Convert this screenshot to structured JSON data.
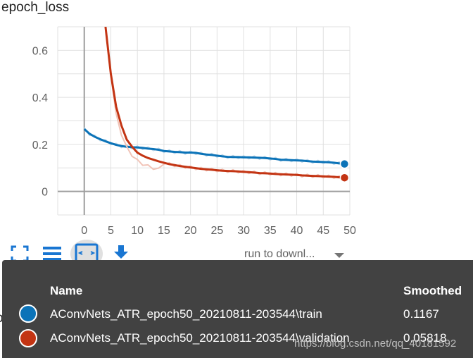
{
  "header": {
    "title": "epoch_loss"
  },
  "chart_data": {
    "type": "line",
    "title": "epoch_loss",
    "xlabel": "",
    "ylabel": "",
    "xlim": [
      -5,
      50
    ],
    "ylim": [
      -0.1,
      0.7
    ],
    "x_ticks": [
      "0",
      "5",
      "10",
      "15",
      "20",
      "25",
      "30",
      "35",
      "40",
      "45",
      "50"
    ],
    "y_ticks": [
      "0",
      "0.2",
      "0.4",
      "0.6"
    ],
    "grid": true,
    "series": [
      {
        "name": "AConvNets_ATR_epoch50_20210811-203544\\train",
        "color": "#0b73b8",
        "x": [
          0,
          1,
          2,
          3,
          4,
          5,
          6,
          7,
          8,
          9,
          10,
          11,
          12,
          13,
          14,
          15,
          16,
          17,
          18,
          19,
          20,
          21,
          22,
          23,
          24,
          25,
          26,
          27,
          28,
          29,
          30,
          31,
          32,
          33,
          34,
          35,
          36,
          37,
          38,
          39,
          40,
          41,
          42,
          43,
          44,
          45,
          46,
          47,
          48,
          49
        ],
        "y": [
          0.265,
          0.245,
          0.232,
          0.222,
          0.213,
          0.205,
          0.198,
          0.193,
          0.19,
          0.188,
          0.187,
          0.185,
          0.182,
          0.18,
          0.177,
          0.172,
          0.17,
          0.168,
          0.167,
          0.165,
          0.165,
          0.164,
          0.16,
          0.157,
          0.155,
          0.152,
          0.149,
          0.147,
          0.146,
          0.146,
          0.145,
          0.145,
          0.144,
          0.143,
          0.142,
          0.14,
          0.138,
          0.135,
          0.134,
          0.133,
          0.132,
          0.131,
          0.129,
          0.127,
          0.126,
          0.125,
          0.124,
          0.122,
          0.119,
          0.1167
        ]
      },
      {
        "name": "AConvNets_ATR_epoch50_20210811-203544\\validation",
        "color": "#c33413",
        "x": [
          4,
          5,
          6,
          7,
          8,
          9,
          10,
          11,
          12,
          13,
          14,
          15,
          16,
          17,
          18,
          19,
          20,
          21,
          22,
          23,
          24,
          25,
          26,
          27,
          28,
          29,
          30,
          31,
          32,
          33,
          34,
          35,
          36,
          37,
          38,
          39,
          40,
          41,
          42,
          43,
          44,
          45,
          46,
          47,
          48,
          49
        ],
        "y": [
          0.7,
          0.5,
          0.36,
          0.28,
          0.22,
          0.19,
          0.165,
          0.152,
          0.142,
          0.135,
          0.128,
          0.122,
          0.116,
          0.112,
          0.108,
          0.105,
          0.102,
          0.099,
          0.096,
          0.094,
          0.092,
          0.09,
          0.088,
          0.087,
          0.086,
          0.085,
          0.083,
          0.082,
          0.08,
          0.078,
          0.077,
          0.076,
          0.074,
          0.073,
          0.072,
          0.071,
          0.07,
          0.068,
          0.067,
          0.066,
          0.065,
          0.064,
          0.063,
          0.062,
          0.06,
          0.05818
        ]
      }
    ]
  },
  "toolbar": {
    "run_select_label": "run to downl..."
  },
  "behind_text": "oss",
  "tooltip": {
    "header_name": "Name",
    "header_smoothed": "Smoothed",
    "rows": [
      {
        "name": "AConvNets_ATR_epoch50_20210811-203544\\train",
        "value": "0.1167",
        "color": "#0b73b8"
      },
      {
        "name": "AConvNets_ATR_epoch50_20210811-203544\\validation",
        "value": "0.05818",
        "color": "#c33413"
      }
    ]
  },
  "watermark": "https://blog.csdn.net/qq_40181592"
}
